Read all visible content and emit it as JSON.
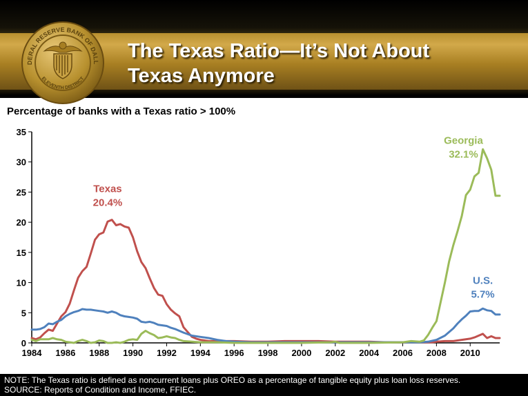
{
  "header": {
    "title_line1": "The Texas Ratio—It’s Not About",
    "title_line2": "Texas Anymore"
  },
  "seal": {
    "outer_text": "FEDERAL RESERVE BANK OF DALLAS",
    "inner_text": "ELEVENTH DISTRICT"
  },
  "footer": {
    "note": "NOTE: The Texas ratio is defined as noncurrent loans plus OREO as a percentage of tangible equity plus loan loss reserves.",
    "source": "SOURCE: Reports of Condition and Income, FFIEC."
  },
  "colors": {
    "texas": "#c0504d",
    "us": "#4f81bd",
    "georgia": "#9bbb59",
    "gold": "#c19a3c"
  },
  "chart_data": {
    "type": "line",
    "title": "Percentage  of banks with a Texas ratio > 100%",
    "xlabel": "",
    "ylabel": "",
    "xlim": [
      1984,
      2011.75
    ],
    "ylim": [
      0,
      35
    ],
    "yticks": [
      0,
      5,
      10,
      15,
      20,
      25,
      30,
      35
    ],
    "xticks": [
      1984,
      1986,
      1988,
      1990,
      1992,
      1994,
      1996,
      1998,
      2000,
      2002,
      2004,
      2006,
      2008,
      2010
    ],
    "grid": false,
    "annotations": [
      {
        "series": "Texas",
        "name": "Texas",
        "value": "20.4%",
        "x": 1988.5,
        "y": 25.0
      },
      {
        "series": "Georgia",
        "name": "Georgia",
        "value": "32.1%",
        "x": 2009.6,
        "y": 33.0
      },
      {
        "series": "U.S.",
        "name": "U.S.",
        "value": "5.7%",
        "x": 2010.75,
        "y": 9.8
      }
    ],
    "series": [
      {
        "name": "Texas",
        "color": "#c0504d",
        "points": [
          [
            1984,
            0.8
          ],
          [
            1984.25,
            0.6
          ],
          [
            1984.5,
            0.9
          ],
          [
            1984.75,
            1.6
          ],
          [
            1985,
            2.2
          ],
          [
            1985.25,
            2.0
          ],
          [
            1985.5,
            3.2
          ],
          [
            1985.75,
            4.4
          ],
          [
            1986,
            5.1
          ],
          [
            1986.25,
            6.5
          ],
          [
            1986.5,
            8.7
          ],
          [
            1986.75,
            10.8
          ],
          [
            1987,
            11.9
          ],
          [
            1987.25,
            12.6
          ],
          [
            1987.5,
            14.8
          ],
          [
            1987.75,
            17.1
          ],
          [
            1988,
            18.0
          ],
          [
            1988.25,
            18.3
          ],
          [
            1988.5,
            20.1
          ],
          [
            1988.75,
            20.4
          ],
          [
            1989,
            19.5
          ],
          [
            1989.25,
            19.7
          ],
          [
            1989.5,
            19.3
          ],
          [
            1989.75,
            19.1
          ],
          [
            1990,
            17.5
          ],
          [
            1990.25,
            15.2
          ],
          [
            1990.5,
            13.4
          ],
          [
            1990.75,
            12.4
          ],
          [
            1991,
            10.7
          ],
          [
            1991.25,
            9.1
          ],
          [
            1991.5,
            8.0
          ],
          [
            1991.75,
            7.8
          ],
          [
            1992,
            6.4
          ],
          [
            1992.25,
            5.5
          ],
          [
            1992.5,
            4.9
          ],
          [
            1992.75,
            4.4
          ],
          [
            1993,
            2.6
          ],
          [
            1993.25,
            1.8
          ],
          [
            1993.5,
            1.0
          ],
          [
            1993.75,
            0.7
          ],
          [
            1994,
            0.5
          ],
          [
            1994.5,
            0.3
          ],
          [
            1995,
            0.3
          ],
          [
            1996,
            0.3
          ],
          [
            1997,
            0.2
          ],
          [
            1998,
            0.2
          ],
          [
            1999,
            0.3
          ],
          [
            2000,
            0.3
          ],
          [
            2001,
            0.3
          ],
          [
            2002,
            0.2
          ],
          [
            2003,
            0.2
          ],
          [
            2004,
            0.2
          ],
          [
            2005,
            0.1
          ],
          [
            2006,
            0.1
          ],
          [
            2007,
            0.1
          ],
          [
            2007.75,
            0.1
          ],
          [
            2008,
            0.2
          ],
          [
            2008.5,
            0.3
          ],
          [
            2009,
            0.3
          ],
          [
            2009.5,
            0.5
          ],
          [
            2010,
            0.7
          ],
          [
            2010.25,
            0.9
          ],
          [
            2010.5,
            1.2
          ],
          [
            2010.75,
            1.5
          ],
          [
            2011,
            0.8
          ],
          [
            2011.25,
            1.1
          ],
          [
            2011.5,
            0.8
          ],
          [
            2011.75,
            0.8
          ]
        ]
      },
      {
        "name": "U.S.",
        "color": "#4f81bd",
        "points": [
          [
            1984,
            2.2
          ],
          [
            1984.25,
            2.2
          ],
          [
            1984.5,
            2.3
          ],
          [
            1984.75,
            2.6
          ],
          [
            1985,
            3.2
          ],
          [
            1985.25,
            3.1
          ],
          [
            1985.5,
            3.5
          ],
          [
            1985.75,
            3.8
          ],
          [
            1986,
            4.4
          ],
          [
            1986.25,
            4.8
          ],
          [
            1986.5,
            5.1
          ],
          [
            1986.75,
            5.3
          ],
          [
            1987,
            5.6
          ],
          [
            1987.25,
            5.5
          ],
          [
            1987.5,
            5.5
          ],
          [
            1987.75,
            5.4
          ],
          [
            1988,
            5.3
          ],
          [
            1988.25,
            5.2
          ],
          [
            1988.5,
            5.0
          ],
          [
            1988.75,
            5.2
          ],
          [
            1989,
            5.0
          ],
          [
            1989.25,
            4.6
          ],
          [
            1989.5,
            4.4
          ],
          [
            1989.75,
            4.3
          ],
          [
            1990,
            4.2
          ],
          [
            1990.25,
            4.0
          ],
          [
            1990.5,
            3.5
          ],
          [
            1990.75,
            3.4
          ],
          [
            1991,
            3.5
          ],
          [
            1991.25,
            3.3
          ],
          [
            1991.5,
            3.0
          ],
          [
            1991.75,
            2.9
          ],
          [
            1992,
            2.8
          ],
          [
            1992.25,
            2.5
          ],
          [
            1992.5,
            2.3
          ],
          [
            1992.75,
            2.0
          ],
          [
            1993,
            1.7
          ],
          [
            1993.5,
            1.2
          ],
          [
            1994,
            1.0
          ],
          [
            1994.5,
            0.8
          ],
          [
            1995,
            0.5
          ],
          [
            1995.5,
            0.3
          ],
          [
            1996,
            0.2
          ],
          [
            1997,
            0.1
          ],
          [
            1998,
            0.1
          ],
          [
            2000,
            0.1
          ],
          [
            2002,
            0.1
          ],
          [
            2004,
            0.1
          ],
          [
            2006,
            0.1
          ],
          [
            2007,
            0.1
          ],
          [
            2007.5,
            0.2
          ],
          [
            2008,
            0.5
          ],
          [
            2008.5,
            1.2
          ],
          [
            2009,
            2.4
          ],
          [
            2009.25,
            3.2
          ],
          [
            2009.5,
            3.9
          ],
          [
            2009.75,
            4.5
          ],
          [
            2010,
            5.2
          ],
          [
            2010.25,
            5.3
          ],
          [
            2010.5,
            5.3
          ],
          [
            2010.75,
            5.7
          ],
          [
            2011,
            5.4
          ],
          [
            2011.25,
            5.3
          ],
          [
            2011.5,
            4.7
          ],
          [
            2011.75,
            4.7
          ]
        ]
      },
      {
        "name": "Georgia",
        "color": "#9bbb59",
        "points": [
          [
            1984,
            0.5
          ],
          [
            1984.25,
            0.3
          ],
          [
            1984.5,
            0.6
          ],
          [
            1984.75,
            0.6
          ],
          [
            1985,
            0.6
          ],
          [
            1985.25,
            0.8
          ],
          [
            1985.5,
            0.6
          ],
          [
            1985.75,
            0.5
          ],
          [
            1986,
            0.2
          ],
          [
            1986.25,
            0.1
          ],
          [
            1986.5,
            0.0
          ],
          [
            1986.75,
            0.3
          ],
          [
            1987,
            0.5
          ],
          [
            1987.25,
            0.3
          ],
          [
            1987.5,
            0.0
          ],
          [
            1987.75,
            0.1
          ],
          [
            1988,
            0.4
          ],
          [
            1988.25,
            0.3
          ],
          [
            1988.5,
            0.0
          ],
          [
            1988.75,
            0.0
          ],
          [
            1989,
            0.1
          ],
          [
            1989.25,
            0.0
          ],
          [
            1989.5,
            0.2
          ],
          [
            1989.75,
            0.5
          ],
          [
            1990,
            0.6
          ],
          [
            1990.25,
            0.5
          ],
          [
            1990.5,
            1.5
          ],
          [
            1990.75,
            2.0
          ],
          [
            1991,
            1.6
          ],
          [
            1991.25,
            1.3
          ],
          [
            1991.5,
            0.8
          ],
          [
            1991.75,
            0.9
          ],
          [
            1992,
            1.1
          ],
          [
            1992.25,
            0.9
          ],
          [
            1992.5,
            0.8
          ],
          [
            1992.75,
            0.5
          ],
          [
            1993,
            0.3
          ],
          [
            1993.5,
            0.2
          ],
          [
            1994,
            0.1
          ],
          [
            1995,
            0.1
          ],
          [
            1996,
            0.0
          ],
          [
            1997,
            0.0
          ],
          [
            1998,
            0.0
          ],
          [
            2000,
            0.0
          ],
          [
            2001.75,
            0.1
          ],
          [
            2002,
            0.2
          ],
          [
            2002.25,
            0.0
          ],
          [
            2004,
            0.0
          ],
          [
            2006,
            0.1
          ],
          [
            2006.5,
            0.3
          ],
          [
            2007,
            0.2
          ],
          [
            2007.25,
            0.4
          ],
          [
            2007.5,
            1.3
          ],
          [
            2007.75,
            2.5
          ],
          [
            2008,
            3.6
          ],
          [
            2008.25,
            6.8
          ],
          [
            2008.5,
            10.0
          ],
          [
            2008.75,
            13.5
          ],
          [
            2009,
            16.2
          ],
          [
            2009.25,
            18.5
          ],
          [
            2009.5,
            21.0
          ],
          [
            2009.75,
            24.5
          ],
          [
            2010,
            25.4
          ],
          [
            2010.25,
            27.6
          ],
          [
            2010.5,
            28.2
          ],
          [
            2010.75,
            32.1
          ],
          [
            2011,
            30.6
          ],
          [
            2011.25,
            28.7
          ],
          [
            2011.5,
            24.4
          ],
          [
            2011.75,
            24.4
          ]
        ]
      }
    ]
  }
}
